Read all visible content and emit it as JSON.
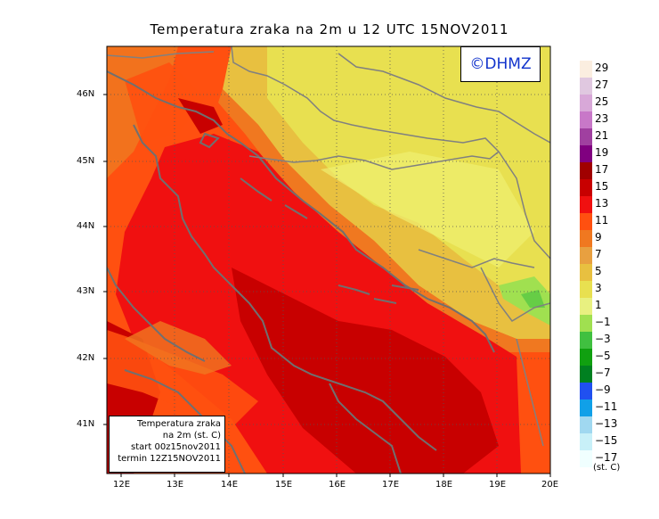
{
  "title": "Temperatura zraka na 2m u 12 UTC 15NOV2011",
  "logo": "©DHMZ",
  "info_box": {
    "line1": "Temperatura zraka",
    "line2": "na 2m (st. C)",
    "line3": "start 00z15nov2011",
    "line4": "termin 12Z15NOV2011"
  },
  "lat_labels": [
    "46N",
    "45N",
    "44N",
    "43N",
    "42N",
    "41N"
  ],
  "lon_labels": [
    "12E",
    "13E",
    "14E",
    "15E",
    "16E",
    "17E",
    "18E",
    "19E",
    "20E"
  ],
  "legend": {
    "unit": "(st. C)",
    "labels": [
      "29",
      "27",
      "25",
      "23",
      "21",
      "19",
      "17",
      "15",
      "13",
      "11",
      "9",
      "7",
      "5",
      "3",
      "1",
      "−1",
      "−3",
      "−5",
      "−7",
      "−9",
      "−11",
      "−13",
      "−15",
      "−17"
    ],
    "colors": [
      "#fbeee0",
      "#e0c8e0",
      "#d8a8d8",
      "#c878c8",
      "#a040a0",
      "#800080",
      "#a00000",
      "#c80000",
      "#f01010",
      "#ff5010",
      "#f07820",
      "#e8a040",
      "#e8c040",
      "#e8e050",
      "#e8f080",
      "#a0e050",
      "#40c040",
      "#10a010",
      "#008020",
      "#2050f0",
      "#10a0e8",
      "#a0d8f0",
      "#c8f0f8",
      "#f0ffff"
    ]
  },
  "colors": {
    "sea_warm": "#f01010",
    "sea_darker": "#c80000",
    "coast_orange": "#ff5010",
    "inland_yellow": "#e8c040",
    "inland_light": "#e8e050",
    "border_gray": "#707070"
  }
}
